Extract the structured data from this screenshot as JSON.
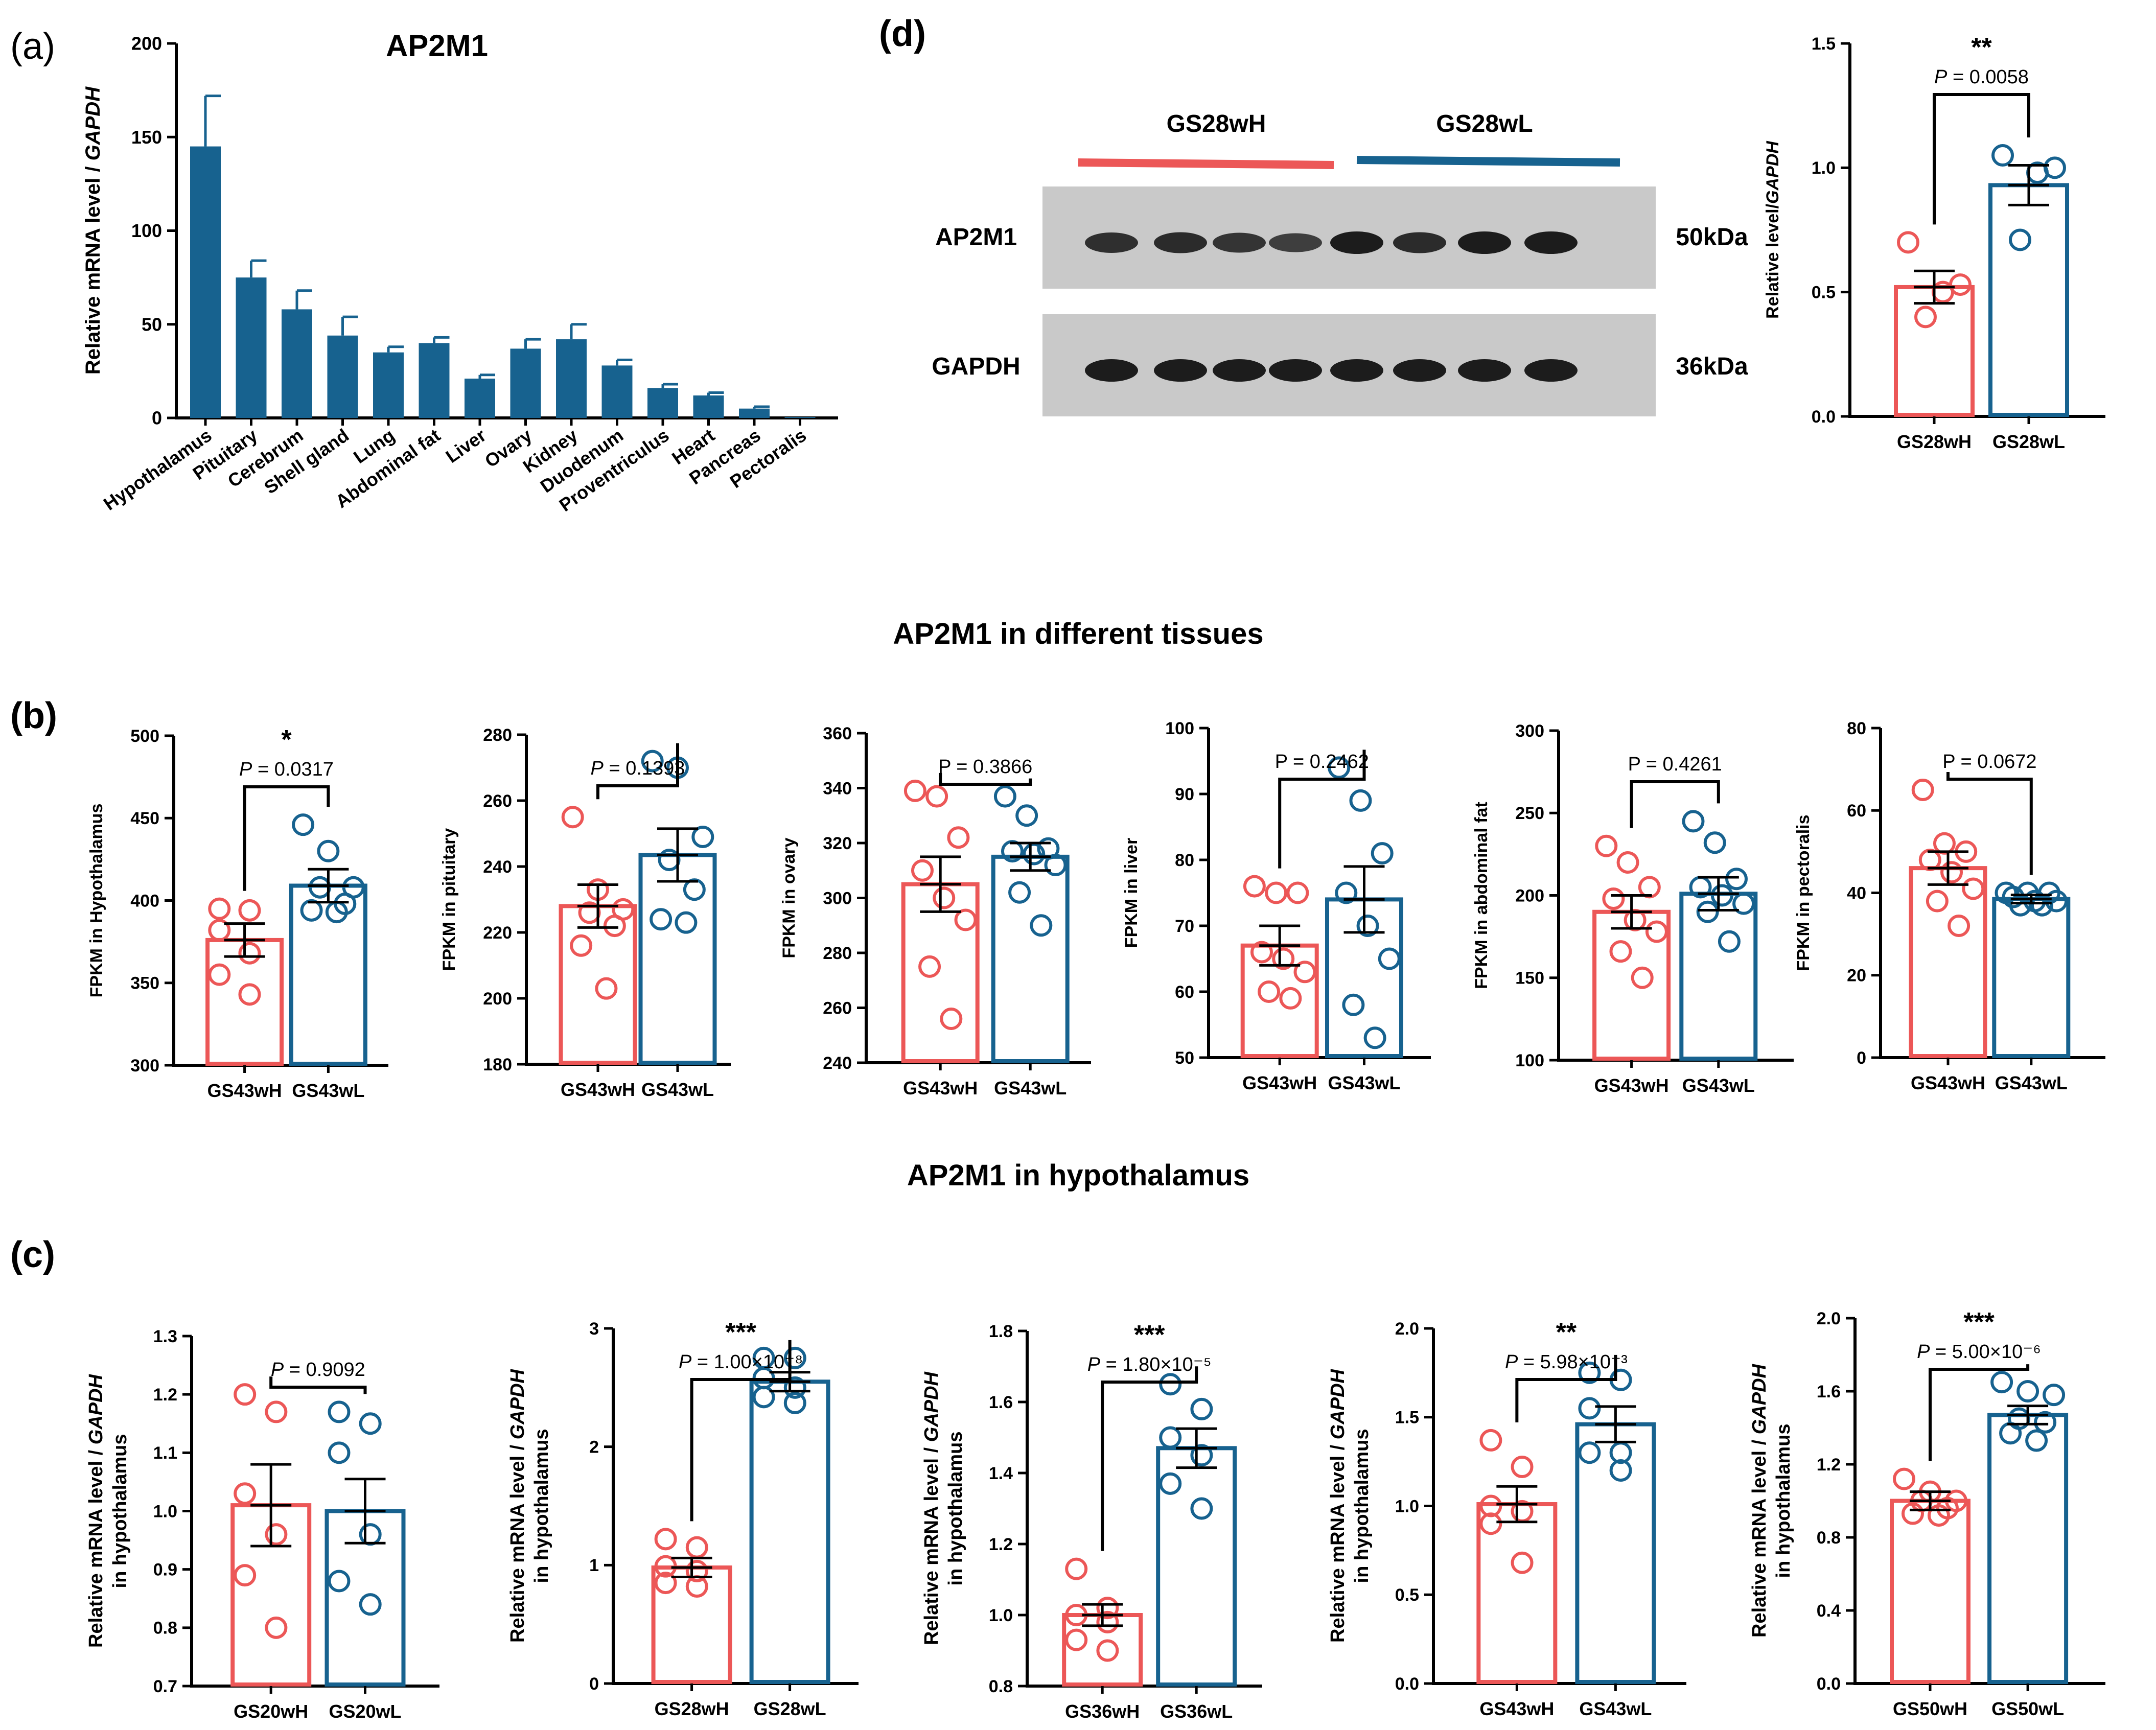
{
  "colors": {
    "bar_a": "#17628f",
    "red": "#ec5757",
    "blue": "#17628f",
    "axis": "#000000",
    "blot_bg": "#c9c9c9",
    "band": "#1c1c1c"
  },
  "panel_labels": {
    "a": "(a)",
    "b": "(b)",
    "c": "(c)",
    "d": "(d)"
  },
  "section_titles": {
    "tissues": "AP2M1 in different tissues",
    "hypothalamus": "AP2M1 in hypothalamus"
  },
  "blot": {
    "group_labels": [
      "GS28wH",
      "GS28wL"
    ],
    "rows": [
      {
        "protein": "AP2M1",
        "size": "50kDa",
        "band_intensity": [
          0.8,
          0.85,
          0.75,
          0.65,
          1.0,
          0.85,
          1.0,
          1.0
        ]
      },
      {
        "protein": "GAPDH",
        "size": "36kDa",
        "band_intensity": [
          1.0,
          1.0,
          1.0,
          1.0,
          1.0,
          1.0,
          1.0,
          1.0
        ]
      }
    ]
  },
  "chart_data": [
    {
      "id": "a",
      "type": "bar",
      "title": "AP2M1",
      "ylabel": "Relative mRNA level / GAPDH",
      "ylabel_italic": "GAPDH",
      "ylim": [
        0,
        200
      ],
      "yticks": [
        0,
        50,
        100,
        150,
        200
      ],
      "categories": [
        "Hypothalamus",
        "Pituitary",
        "Cerebrum",
        "Shell gland",
        "Lung",
        "Abdominal fat",
        "Liver",
        "Ovary",
        "Kidney",
        "Duodenum",
        "Proventriculus",
        "Heart",
        "Pancreas",
        "Pectoralis"
      ],
      "values": [
        145,
        75,
        58,
        44,
        35,
        40,
        21,
        37,
        42,
        28,
        16,
        12,
        5,
        0.5
      ],
      "errors": [
        27,
        9,
        10,
        10,
        3,
        3,
        2,
        5,
        8,
        3,
        2,
        1.5,
        1,
        0
      ]
    },
    {
      "id": "b1",
      "type": "bar",
      "ylabel": "FPKM in Hypothalamus",
      "ylim": [
        300,
        500
      ],
      "yticks": [
        300,
        350,
        400,
        450,
        500
      ],
      "categories": [
        "GS43wH",
        "GS43wL"
      ],
      "values": [
        376,
        409
      ],
      "errors": [
        10,
        10
      ],
      "points": [
        [
          395,
          394,
          382,
          368,
          355,
          343
        ],
        [
          446,
          430,
          408,
          408,
          398,
          394,
          393
        ]
      ],
      "stars": "*",
      "p_prefix": "P",
      "p_value": " = 0.0317"
    },
    {
      "id": "b2",
      "type": "bar",
      "ylabel": "FPKM in pituitary",
      "ylim": [
        180,
        280
      ],
      "yticks": [
        180,
        200,
        220,
        240,
        260,
        280
      ],
      "categories": [
        "GS43wH",
        "GS43wL"
      ],
      "values": [
        228,
        243.5
      ],
      "errors": [
        6.5,
        8
      ],
      "points": [
        [
          255,
          233,
          227,
          226,
          222,
          216,
          203
        ],
        [
          272,
          270,
          249,
          242,
          233,
          224,
          223
        ]
      ],
      "stars": "",
      "p_prefix": "P",
      "p_value": " = 0.1393"
    },
    {
      "id": "b3",
      "type": "bar",
      "ylabel": "FPKM in ovary",
      "ylim": [
        240,
        360
      ],
      "yticks": [
        240,
        260,
        280,
        300,
        320,
        340,
        360
      ],
      "categories": [
        "GS43wH",
        "GS43wL"
      ],
      "values": [
        305,
        315
      ],
      "errors": [
        10,
        5
      ],
      "points": [
        [
          339,
          337,
          322,
          310,
          300,
          292,
          275,
          256
        ],
        [
          337,
          330,
          318,
          317,
          316,
          312,
          302,
          290
        ]
      ],
      "stars": "",
      "p_prefix": "",
      "p_value": "P = 0.3866"
    },
    {
      "id": "b4",
      "type": "bar",
      "ylabel": "FPKM in liver",
      "ylim": [
        50,
        100
      ],
      "yticks": [
        50,
        60,
        70,
        80,
        90,
        100
      ],
      "categories": [
        "GS43wH",
        "GS43wL"
      ],
      "values": [
        67,
        74
      ],
      "errors": [
        3,
        5
      ],
      "points": [
        [
          76,
          75,
          75,
          66,
          65,
          63,
          60,
          59
        ],
        [
          94,
          89,
          81,
          75,
          70,
          65,
          58,
          53
        ]
      ],
      "stars": "",
      "p_prefix": "",
      "p_value": "P = 0.2462"
    },
    {
      "id": "b5",
      "type": "bar",
      "ylabel": "FPKM in abdominal fat",
      "ylim": [
        100,
        300
      ],
      "yticks": [
        100,
        150,
        200,
        250,
        300
      ],
      "categories": [
        "GS43wH",
        "GS43wL"
      ],
      "values": [
        190,
        201
      ],
      "errors": [
        10,
        10
      ],
      "points": [
        [
          230,
          220,
          205,
          198,
          185,
          178,
          166,
          150
        ],
        [
          245,
          232,
          210,
          205,
          200,
          195,
          190,
          172
        ]
      ],
      "stars": "",
      "p_prefix": "",
      "p_value": "P = 0.4261"
    },
    {
      "id": "b6",
      "type": "bar",
      "ylabel": "FPKM in pectoralis",
      "ylim": [
        0,
        80
      ],
      "yticks": [
        0,
        20,
        40,
        60,
        80
      ],
      "categories": [
        "GS43wH",
        "GS43wL"
      ],
      "values": [
        46,
        38.5
      ],
      "errors": [
        4,
        1
      ],
      "points": [
        [
          65,
          52,
          50,
          48,
          45,
          41,
          38,
          32
        ],
        [
          40,
          40,
          40,
          39,
          38,
          38,
          37,
          37
        ]
      ],
      "stars": "",
      "p_prefix": "",
      "p_value": "P = 0.0672"
    },
    {
      "id": "c1",
      "type": "bar",
      "ylabel": "Relative mRNA level / GAPDH",
      "ylabel_italic": "GAPDH",
      "ylabel2": "in hypothalamus",
      "ylim": [
        0.7,
        1.3
      ],
      "yticks": [
        0.7,
        0.8,
        0.9,
        1.0,
        1.1,
        1.2,
        1.3
      ],
      "decimals": 1,
      "categories": [
        "GS20wH",
        "GS20wL"
      ],
      "values": [
        1.01,
        1.0
      ],
      "errors": [
        0.07,
        0.055
      ],
      "points": [
        [
          1.2,
          1.17,
          1.03,
          0.96,
          0.89,
          0.8
        ],
        [
          1.17,
          1.15,
          1.1,
          0.96,
          0.88,
          0.84
        ]
      ],
      "stars": "",
      "p_prefix": "P",
      "p_value": " = 0.9092"
    },
    {
      "id": "c2",
      "type": "bar",
      "ylabel": "Relative mRNA level / GAPDH",
      "ylabel_italic": "GAPDH",
      "ylabel2": "in hypothalamus",
      "ylim": [
        0,
        3
      ],
      "yticks": [
        0,
        1,
        2,
        3
      ],
      "decimals": 0,
      "categories": [
        "GS28wH",
        "GS28wL"
      ],
      "values": [
        0.98,
        2.55
      ],
      "errors": [
        0.08,
        0.08
      ],
      "points": [
        [
          1.22,
          1.15,
          0.99,
          0.95,
          0.85,
          0.82
        ],
        [
          2.75,
          2.75,
          2.58,
          2.5,
          2.42,
          2.37
        ]
      ],
      "stars": "***",
      "p_prefix": "P",
      "p_value": " = 1.00×10⁻⁸"
    },
    {
      "id": "c3",
      "type": "bar",
      "ylabel": "Relative mRNA level / GAPDH",
      "ylabel_italic": "GAPDH",
      "ylabel2": "in hypothalamus",
      "ylim": [
        0.8,
        1.8
      ],
      "yticks": [
        0.8,
        1.0,
        1.2,
        1.4,
        1.6,
        1.8
      ],
      "decimals": 1,
      "categories": [
        "GS36wH",
        "GS36wL"
      ],
      "values": [
        1.0,
        1.47
      ],
      "errors": [
        0.03,
        0.055
      ],
      "points": [
        [
          1.13,
          1.02,
          1.0,
          0.98,
          0.93,
          0.9
        ],
        [
          1.65,
          1.58,
          1.5,
          1.45,
          1.37,
          1.3
        ]
      ],
      "stars": "***",
      "p_prefix": "P",
      "p_value": " = 1.80×10⁻⁵"
    },
    {
      "id": "c4",
      "type": "bar",
      "ylabel": "Relative mRNA level / GAPDH",
      "ylabel_italic": "GAPDH",
      "ylabel2": "in hypothalamus",
      "ylim": [
        0,
        2.0
      ],
      "yticks": [
        0.0,
        0.5,
        1.0,
        1.5,
        2.0
      ],
      "decimals": 1,
      "categories": [
        "GS43wH",
        "GS43wL"
      ],
      "values": [
        1.01,
        1.46
      ],
      "errors": [
        0.1,
        0.1
      ],
      "points": [
        [
          1.37,
          1.22,
          1.0,
          0.97,
          0.9,
          0.68
        ],
        [
          1.75,
          1.71,
          1.55,
          1.3,
          1.3,
          1.2
        ]
      ],
      "stars": "**",
      "p_prefix": "P",
      "p_value": " = 5.98×10⁻³"
    },
    {
      "id": "c5",
      "type": "bar",
      "ylabel": "Relative mRNA level / GAPDH",
      "ylabel_italic": "GAPDH",
      "ylabel2": "in hypothalamus",
      "ylim": [
        0,
        2.0
      ],
      "yticks": [
        0.0,
        0.4,
        0.8,
        1.2,
        1.6,
        2.0
      ],
      "decimals": 1,
      "categories": [
        "GS50wH",
        "GS50wL"
      ],
      "values": [
        1.0,
        1.47
      ],
      "errors": [
        0.05,
        0.05
      ],
      "points": [
        [
          1.12,
          1.05,
          1.0,
          1.0,
          0.96,
          0.93,
          0.92
        ],
        [
          1.65,
          1.6,
          1.58,
          1.45,
          1.43,
          1.37,
          1.33
        ]
      ],
      "stars": "***",
      "p_prefix": "P",
      "p_value": " = 5.00×10⁻⁶"
    },
    {
      "id": "d",
      "type": "bar",
      "ylabel": "Relative level/GAPDH",
      "ylabel_italic": "GAPDH",
      "ylim": [
        0,
        1.5
      ],
      "yticks": [
        0.0,
        0.5,
        1.0,
        1.5
      ],
      "decimals": 1,
      "categories": [
        "GS28wH",
        "GS28wL"
      ],
      "values": [
        0.52,
        0.93
      ],
      "errors": [
        0.065,
        0.08
      ],
      "points": [
        [
          0.7,
          0.53,
          0.5,
          0.4
        ],
        [
          1.05,
          1.0,
          0.98,
          0.71
        ]
      ],
      "stars": "**",
      "p_prefix": "P",
      "p_value": " = 0.0058"
    }
  ]
}
